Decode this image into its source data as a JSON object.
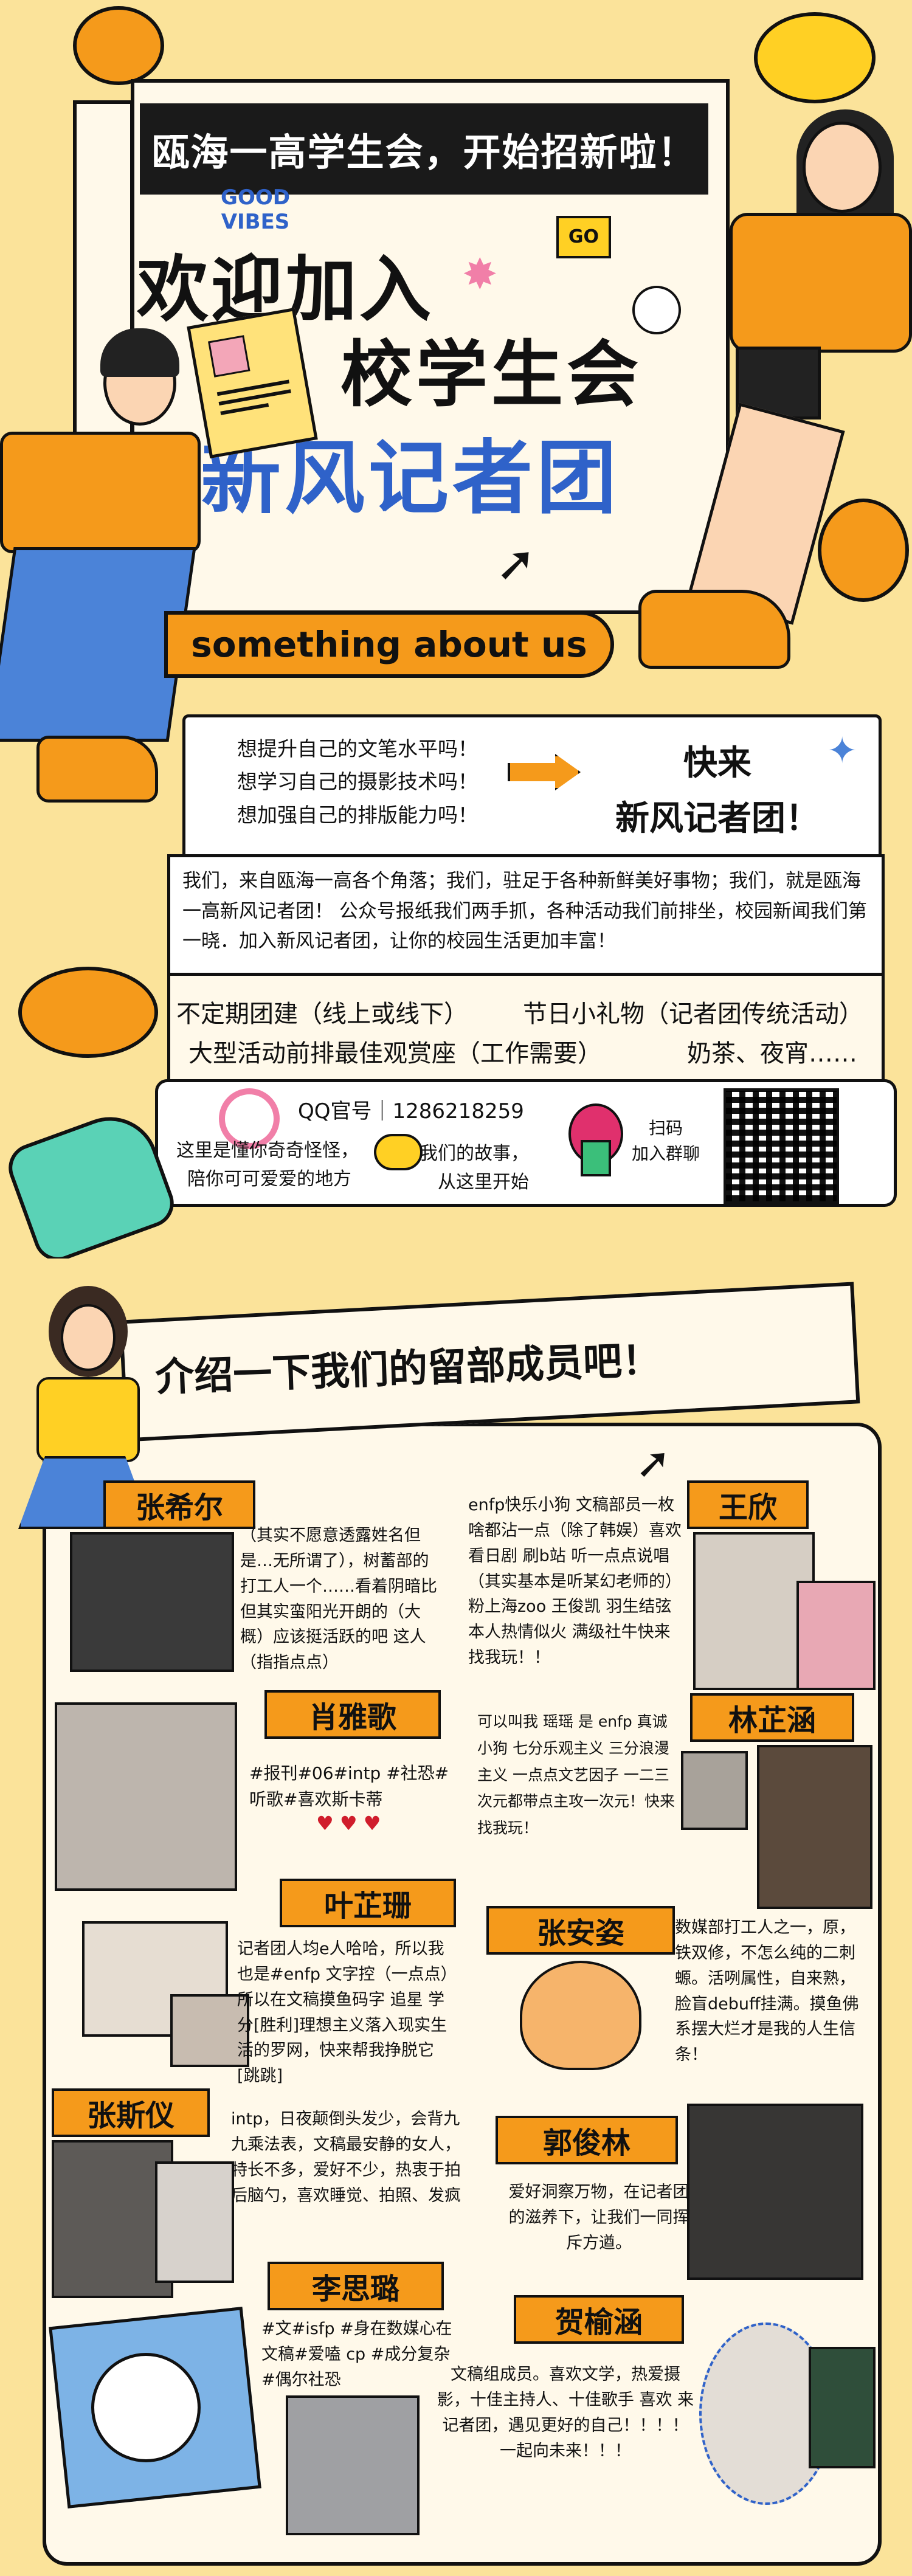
{
  "header": {
    "title_banner": "瓯海一高学生会，开始招新啦！",
    "badge_top": "GOOD",
    "badge_bottom": "VIBES",
    "go_label": "GO",
    "line1": "欢迎加入",
    "line2": "校学生会",
    "line3": "新风记者团",
    "about": "something about us"
  },
  "pitch": {
    "q1": "想提升自己的文笔水平吗！",
    "q2": "想学习自己的摄影技术吗！",
    "q3": "想加强自己的排版能力吗！",
    "call1": "快来",
    "call2": "新风记者团！",
    "intro": "我们，来自瓯海一高各个角落；我们，驻足于各种新鲜美好事物；我们，就是瓯海一高新风记者团！ 公众号报纸我们两手抓，各种活动我们前排坐，校园新闻我们第一晓．加入新风记者团，让你的校园生活更加丰富！"
  },
  "perks": {
    "p1": "不定期团建（线上或线下）",
    "p2": "节日小礼物（记者团传统活动）",
    "p3": "大型活动前排最佳观赏座（工作需要）",
    "p4": "奶茶、夜宵……"
  },
  "contact": {
    "qq_label": "QQ官号｜1286218259",
    "tag1a": "这里是懂你奇奇怪怪，",
    "tag1b": "陪你可可爱爱的地方",
    "tag2a": "我们的故事，",
    "tag2b": "从这里开始",
    "scan1": "扫码",
    "scan2": "加入群聊"
  },
  "members_title": "介绍一下我们的留部成员吧！",
  "members": [
    {
      "name": "张希尔",
      "text": "（其实不愿意透露姓名但是…无所谓了），树蓄部的打工人一个……看着阴暗比但其实蛮阳光开朗的（大概）应该挺活跃的吧 这人（指指点点）"
    },
    {
      "name": "王欣",
      "text": "enfp快乐小狗 文稿部员一枚 啥都沾一点（除了韩娱）喜欢看日剧 刷b站 听一点点说唱（其实基本是听某幻老师的）粉上海zoo 王俊凯 羽生结弦 本人热情似火 满级社牛快来找我玩！！"
    },
    {
      "name": "肖雅歌",
      "text": "#报刊#06#intp #社恐#听歌#喜欢斯卡蒂"
    },
    {
      "name": "林芷涵",
      "text": "可以叫我 瑶瑶 是 enfp 真诚小狗 七分乐观主义 三分浪漫主义 一点点文艺因子 一二三次元都带点主攻一次元！快来找我玩！"
    },
    {
      "name": "叶芷珊",
      "text": "记者团人均e人哈哈，所以我也是#enfp 文字控（一点点）所以在文稿摸鱼码字 追星 学分[胜利]理想主义落入现实生活的罗网，快来帮我挣脱它[跳跳]"
    },
    {
      "name": "张安姿",
      "text": "数媒部打工人之一，原，铁双修，不怎么纯的二刺螈。活咧属性，自来熟，脸盲debuff挂满。摸鱼佛系摆大烂才是我的人生信条！"
    },
    {
      "name": "张斯仪",
      "text": "intp，日夜颠倒头发少，会背九九乘法表，文稿最安静的女人，特长不多，爱好不少，热衷于拍后脑勺，喜欢睡觉、拍照、发疯"
    },
    {
      "name": "郭俊林",
      "text": "爱好洞察万物，在记者团的滋养下，让我们一同挥斥方遒。"
    },
    {
      "name": "李思璐",
      "text": "#文#isfp #身在数媒心在文稿#爱嗑 cp #成分复杂#偶尔社恐"
    },
    {
      "name": "贺榆涵",
      "text": "文稿组成员。喜欢文学，热爱摄影，十佳主持人、十佳歌手 喜欢 来记者团，遇见更好的自己！！！！一起向未来！！！"
    }
  ]
}
